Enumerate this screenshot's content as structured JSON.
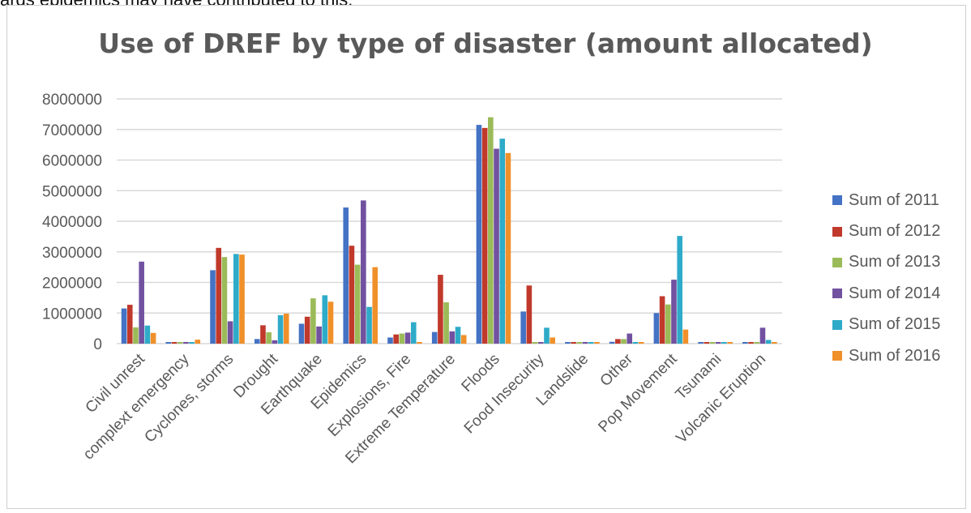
{
  "context_text": "ards epidemics may have contributed to this.",
  "chart_data": {
    "type": "bar",
    "title": "Use of DREF by type of disaster (amount allocated)",
    "xlabel": "",
    "ylabel": "",
    "ylim": [
      0,
      8000000
    ],
    "yticks": [
      0,
      1000000,
      2000000,
      3000000,
      4000000,
      5000000,
      6000000,
      7000000,
      8000000
    ],
    "grid": true,
    "legend_position": "right",
    "categories": [
      "Civil unrest",
      "complext emergency",
      "Cyclones, storms",
      "Drought",
      "Earthquake",
      "Epidemics",
      "Explosions, Fire",
      "Extreme Temperature",
      "Floods",
      "Food Insecurity",
      "Landslide",
      "Other",
      "Pop Movement",
      "Tsunami",
      "Volcanic Eruption"
    ],
    "series": [
      {
        "name": "Sum of 2011",
        "color": "#4472c4",
        "values": [
          1150000,
          0,
          2400000,
          150000,
          650000,
          4450000,
          200000,
          380000,
          7150000,
          1050000,
          0,
          60000,
          1000000,
          0,
          0
        ]
      },
      {
        "name": "Sum of 2012",
        "color": "#c0392b",
        "values": [
          1270000,
          0,
          3130000,
          600000,
          880000,
          3200000,
          300000,
          2250000,
          7050000,
          1900000,
          0,
          150000,
          1550000,
          0,
          0
        ]
      },
      {
        "name": "Sum of 2013",
        "color": "#9bbb59",
        "values": [
          530000,
          0,
          2830000,
          370000,
          1480000,
          2580000,
          330000,
          1350000,
          7400000,
          50000,
          0,
          150000,
          1280000,
          0,
          0
        ]
      },
      {
        "name": "Sum of 2014",
        "color": "#7151a0",
        "values": [
          2680000,
          0,
          730000,
          110000,
          560000,
          4680000,
          360000,
          400000,
          6370000,
          0,
          0,
          330000,
          2090000,
          0,
          520000
        ]
      },
      {
        "name": "Sum of 2015",
        "color": "#2eabc8",
        "values": [
          590000,
          0,
          2930000,
          930000,
          1580000,
          1200000,
          700000,
          550000,
          6700000,
          520000,
          0,
          30000,
          3520000,
          0,
          120000
        ]
      },
      {
        "name": "Sum of 2016",
        "color": "#f0902a",
        "values": [
          350000,
          130000,
          2910000,
          980000,
          1370000,
          2500000,
          0,
          280000,
          6230000,
          200000,
          40000,
          40000,
          460000,
          0,
          0
        ]
      }
    ]
  }
}
